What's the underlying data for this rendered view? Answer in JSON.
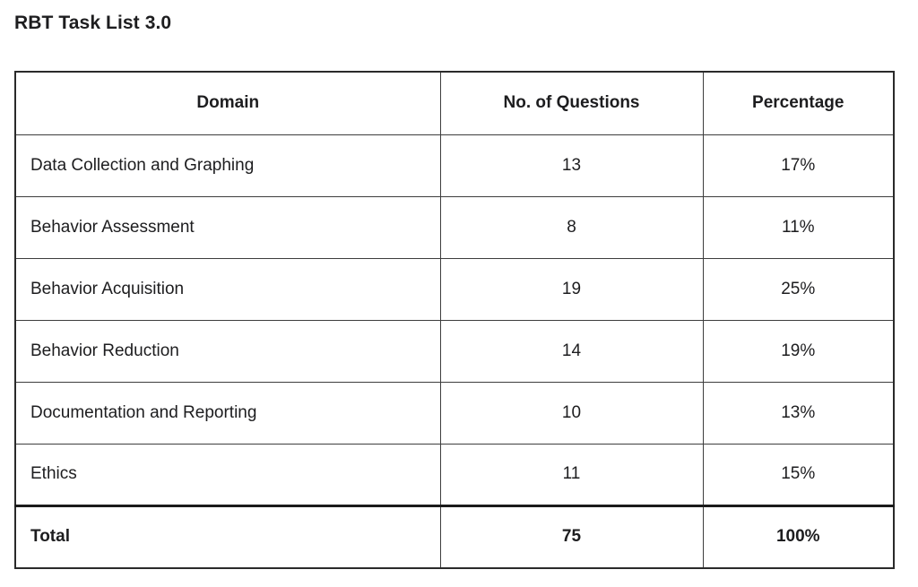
{
  "page": {
    "title": "RBT Task List 3.0"
  },
  "colors": {
    "background": "#ffffff",
    "text": "#1d1d1f",
    "border_thin": "#3d3d3d",
    "border_thick": "#1b1b1b"
  },
  "table": {
    "columns": [
      "Domain",
      "No. of Questions",
      "Percentage"
    ],
    "rows": [
      {
        "domain": "Data Collection and Graphing",
        "questions": "13",
        "percentage": "17%"
      },
      {
        "domain": "Behavior Assessment",
        "questions": "8",
        "percentage": "11%"
      },
      {
        "domain": "Behavior Acquisition",
        "questions": "19",
        "percentage": "25%"
      },
      {
        "domain": "Behavior Reduction",
        "questions": "14",
        "percentage": "19%"
      },
      {
        "domain": "Documentation and Reporting",
        "questions": "10",
        "percentage": "13%"
      },
      {
        "domain": "Ethics",
        "questions": "11",
        "percentage": "15%"
      }
    ],
    "total": {
      "domain": "Total",
      "questions": "75",
      "percentage": "100%"
    }
  }
}
